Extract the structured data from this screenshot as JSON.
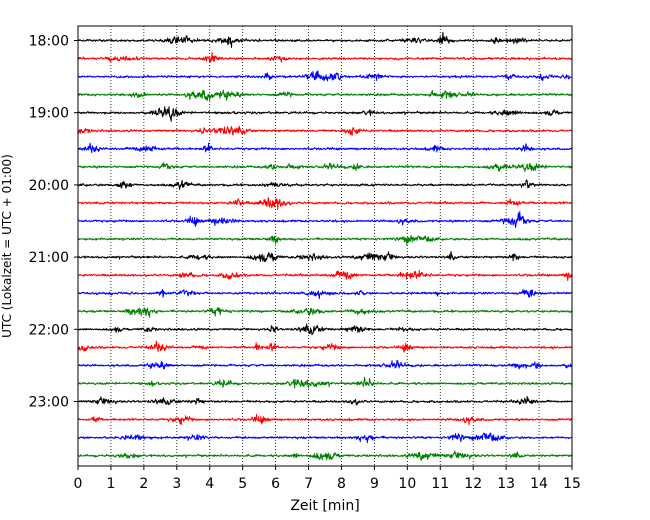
{
  "chart_data": {
    "type": "line",
    "title": "",
    "xlabel": "Zeit  [min]",
    "ylabel": "UTC (Lokalzeit = UTC + 01:00)",
    "xlim": [
      0,
      15
    ],
    "xticks": [
      "0",
      "1",
      "2",
      "3",
      "4",
      "5",
      "6",
      "7",
      "8",
      "9",
      "10",
      "11",
      "12",
      "13",
      "14",
      "15"
    ],
    "yticks": [
      "18:00",
      "19:00",
      "20:00",
      "21:00",
      "22:00",
      "23:00"
    ],
    "ytick_every_n_traces": 4,
    "trace_minutes": 15,
    "trace_count": 24,
    "first_trace_start": "18:00",
    "grid": "vertical dotted lines at every minute",
    "color_cycle": [
      "#000000",
      "#ff0000",
      "#0000ff",
      "#008000"
    ],
    "series": [
      {
        "label": "18:00",
        "color": "#000000"
      },
      {
        "label": "18:15",
        "color": "#ff0000"
      },
      {
        "label": "18:30",
        "color": "#0000ff"
      },
      {
        "label": "18:45",
        "color": "#008000"
      },
      {
        "label": "19:00",
        "color": "#000000"
      },
      {
        "label": "19:15",
        "color": "#ff0000"
      },
      {
        "label": "19:30",
        "color": "#0000ff"
      },
      {
        "label": "19:45",
        "color": "#008000"
      },
      {
        "label": "20:00",
        "color": "#000000"
      },
      {
        "label": "20:15",
        "color": "#ff0000"
      },
      {
        "label": "20:30",
        "color": "#0000ff"
      },
      {
        "label": "20:45",
        "color": "#008000"
      },
      {
        "label": "21:00",
        "color": "#000000"
      },
      {
        "label": "21:15",
        "color": "#ff0000"
      },
      {
        "label": "21:30",
        "color": "#0000ff"
      },
      {
        "label": "21:45",
        "color": "#008000"
      },
      {
        "label": "22:00",
        "color": "#000000"
      },
      {
        "label": "22:15",
        "color": "#ff0000"
      },
      {
        "label": "22:30",
        "color": "#0000ff"
      },
      {
        "label": "22:45",
        "color": "#008000"
      },
      {
        "label": "23:00",
        "color": "#000000"
      },
      {
        "label": "23:15",
        "color": "#ff0000"
      },
      {
        "label": "23:30",
        "color": "#0000ff"
      },
      {
        "label": "23:45",
        "color": "#008000"
      }
    ]
  }
}
